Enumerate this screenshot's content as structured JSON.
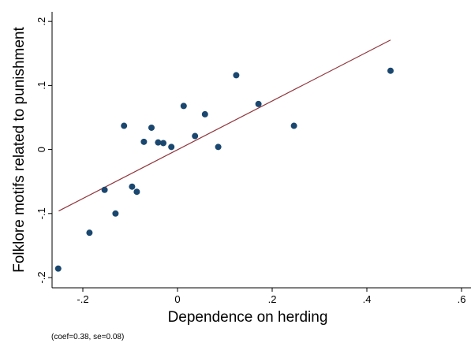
{
  "chart_data": {
    "type": "scatter",
    "xlabel": "Dependence on herding",
    "ylabel": "Folklore motifs related to punishment",
    "annotation": "(coef=0.38, se=0.08)",
    "xlim": [
      -0.265,
      0.62
    ],
    "ylim": [
      -0.216,
      0.215
    ],
    "xticks": [
      {
        "value": -0.2,
        "label": "-.2"
      },
      0,
      {
        "value": 0.2,
        "label": ".2"
      },
      {
        "value": 0.4,
        "label": ".4"
      },
      {
        "value": 0.6,
        "label": ".6"
      }
    ],
    "yticks": [
      {
        "value": -0.2,
        "label": "-.2"
      },
      {
        "value": -0.1,
        "label": "-.1"
      },
      0,
      {
        "value": 0.1,
        "label": ".1"
      },
      {
        "value": 0.2,
        "label": ".2"
      }
    ],
    "points": {
      "color": "#1a476f",
      "x": [
        -0.252,
        -0.186,
        -0.113,
        -0.154,
        -0.131,
        -0.096,
        -0.086,
        -0.071,
        -0.055,
        -0.041,
        -0.03,
        -0.013,
        0.013,
        0.037,
        0.058,
        0.086,
        0.124,
        0.171,
        0.246,
        0.45
      ],
      "values": [
        -0.186,
        -0.13,
        0.037,
        -0.063,
        -0.1,
        -0.058,
        -0.066,
        0.012,
        0.034,
        0.011,
        0.01,
        0.004,
        0.068,
        0.021,
        0.055,
        0.004,
        0.116,
        0.071,
        0.037,
        0.123
      ]
    },
    "fit_line": {
      "color": "#90353b",
      "x": [
        -0.251,
        0.45
      ],
      "values": [
        -0.096,
        0.171
      ]
    }
  }
}
